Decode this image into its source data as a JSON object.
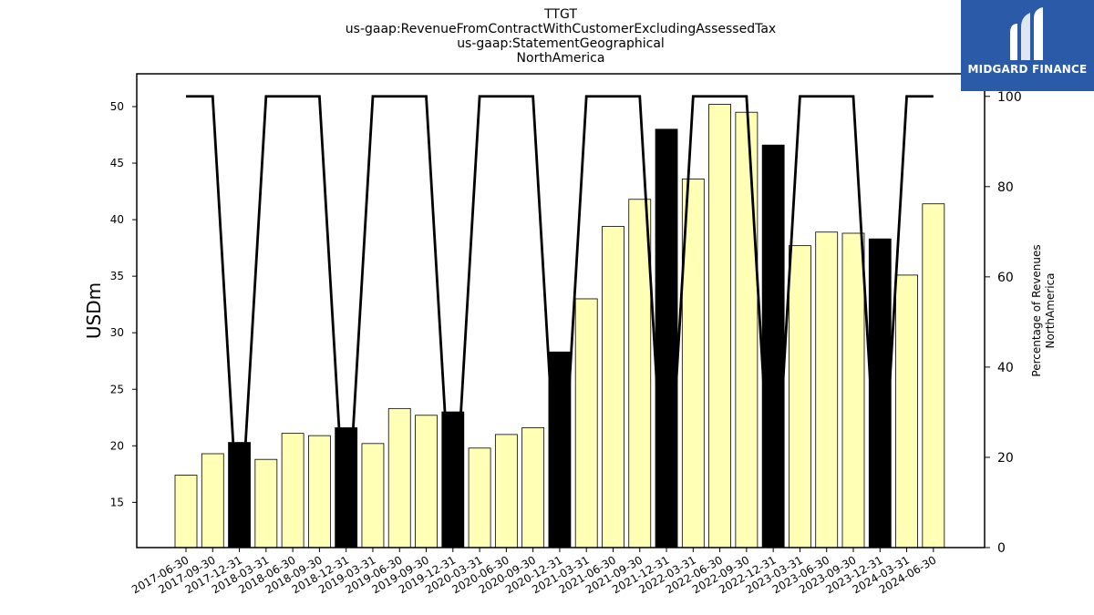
{
  "chart_data": {
    "type": "bar",
    "title": [
      "TTGT",
      "us-gaap:RevenueFromContractWithCustomerExcludingAssessedTax",
      "us-gaap:StatementGeographical",
      "NorthAmerica"
    ],
    "ylabel": "USDm",
    "y2label": [
      "Percentage of Revenues",
      "NorthAmerica"
    ],
    "ylim": [
      11,
      52.9
    ],
    "y2lim": [
      0,
      105
    ],
    "yticks": [
      15,
      20,
      25,
      30,
      35,
      40,
      45,
      50
    ],
    "y2ticks": [
      0,
      20,
      40,
      60,
      80,
      100
    ],
    "categories": [
      "2017-06-30",
      "2017-09-30",
      "2017-12-31",
      "2018-03-31",
      "2018-06-30",
      "2018-09-30",
      "2018-12-31",
      "2019-03-31",
      "2019-06-30",
      "2019-09-30",
      "2019-12-31",
      "2020-03-31",
      "2020-06-30",
      "2020-09-30",
      "2020-12-31",
      "2021-03-31",
      "2021-06-30",
      "2021-09-30",
      "2021-12-31",
      "2022-03-31",
      "2022-06-30",
      "2022-09-30",
      "2022-12-31",
      "2023-03-31",
      "2023-06-30",
      "2023-09-30",
      "2023-12-31",
      "2024-03-31",
      "2024-06-30"
    ],
    "series": [
      {
        "type": "bar",
        "values": [
          17.4,
          19.3,
          20.3,
          18.8,
          21.1,
          20.9,
          21.6,
          20.2,
          23.3,
          22.7,
          23.0,
          19.8,
          21.0,
          21.6,
          28.3,
          33.0,
          39.4,
          41.8,
          48.0,
          43.6,
          50.2,
          49.5,
          46.6,
          37.7,
          38.9,
          38.8,
          38.3,
          35.1,
          41.4
        ],
        "colors": [
          "#ffffb5",
          "#ffffb5",
          "#000000",
          "#ffffb5",
          "#ffffb5",
          "#ffffb5",
          "#000000",
          "#ffffb5",
          "#ffffb5",
          "#ffffb5",
          "#000000",
          "#ffffb5",
          "#ffffb5",
          "#ffffb5",
          "#000000",
          "#ffffb5",
          "#ffffb5",
          "#ffffb5",
          "#000000",
          "#ffffb5",
          "#ffffb5",
          "#ffffb5",
          "#000000",
          "#ffffb5",
          "#ffffb5",
          "#ffffb5",
          "#000000",
          "#ffffb5",
          "#ffffb5"
        ]
      },
      {
        "type": "line",
        "axis": "right",
        "values": [
          100,
          100,
          0,
          100,
          100,
          100,
          0,
          100,
          100,
          100,
          0,
          100,
          100,
          100,
          0,
          100,
          100,
          100,
          0,
          100,
          100,
          100,
          0,
          100,
          100,
          100,
          0,
          100,
          100
        ],
        "color": "#000000"
      }
    ],
    "grid": false
  },
  "logo": {
    "text": "MIDGARD FINANCE",
    "color": "#2a5aa8"
  }
}
